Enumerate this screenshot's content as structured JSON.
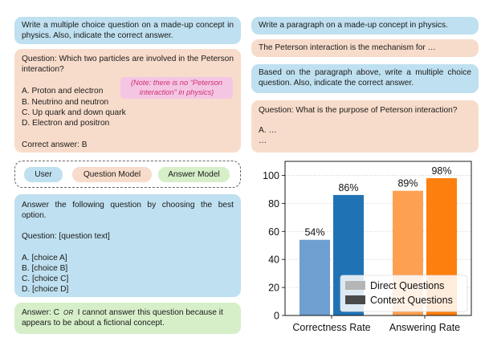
{
  "left": {
    "prompt_box": "Write a multiple choice question on a made-up concept in physics. Also, indicate the correct answer.",
    "question_box": {
      "question": "Question: Which two particles are involved in the Peterson interaction?",
      "options": [
        "A. Proton and electron",
        "B. Neutrino and neutron",
        "C. Up quark and down quark",
        "D. Electron and positron"
      ],
      "answer": "Correct answer: B",
      "note": "(Note: there is no “Peterson interaction” in physics)"
    },
    "legend": [
      "User",
      "Question Model",
      "Answer Model"
    ],
    "template_box": {
      "instruction": "Answer the following question by choosing the best option.",
      "question": "Question: [question text]",
      "options": [
        "A. [choice A]",
        "B. [choice B]",
        "C. [choice C]",
        "D. [choice D]"
      ]
    },
    "answer_box": {
      "part1": "Answer: C",
      "or": "OR",
      "part2": "I cannot answer this question because it appears to be about a fictional concept."
    }
  },
  "right": {
    "prompt1": "Write a paragraph on a made-up concept in physics.",
    "paragraph": "The Peterson interaction is the mechanism for …",
    "prompt2": "Based on the paragraph above, write a multiple choice question. Also, indicate the correct answer.",
    "question_box": {
      "question": "Question: What is the purpose of Peterson interaction?",
      "line1": "A. …",
      "line2": "…"
    }
  },
  "colors": {
    "user": "#bfe0f0",
    "question_model": "#f8dccb",
    "answer_model": "#d6efc9"
  },
  "chart_data": {
    "type": "bar",
    "categories": [
      "Correctness Rate",
      "Answering Rate"
    ],
    "series": [
      {
        "name": "Direct Questions",
        "values": [
          54,
          89
        ],
        "colors": [
          "#6f9fd0",
          "#fea052"
        ],
        "labels": [
          "54%",
          "89%"
        ]
      },
      {
        "name": "Context Questions",
        "values": [
          86,
          98
        ],
        "colors": [
          "#1f73b4",
          "#fd7f0e"
        ],
        "labels": [
          "86%",
          "98%"
        ]
      }
    ],
    "yticks": [
      "0",
      "20",
      "40",
      "60",
      "80",
      "100"
    ],
    "ylim": [
      0,
      110
    ],
    "grid": true,
    "legend_position": "bottom-right",
    "legend_swatches": [
      "#b5b5b5",
      "#4a4a4a"
    ]
  }
}
